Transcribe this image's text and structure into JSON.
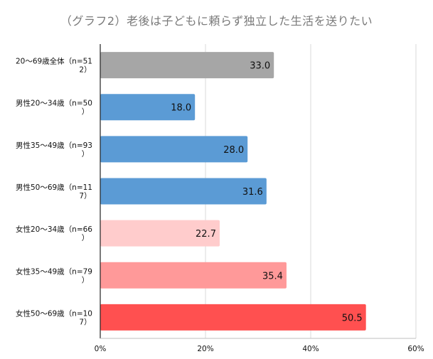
{
  "chart_data": {
    "type": "bar",
    "orientation": "horizontal",
    "title": "（グラフ2）老後は子どもに頼らず独立した生活を送りたい",
    "categories": [
      [
        "20〜69歳全体（n=51",
        "2）"
      ],
      [
        "男性20〜34歳（n=50",
        "）"
      ],
      [
        "男性35〜49歳（n=93",
        "）"
      ],
      [
        "男性50〜69歳（n=11",
        "7）"
      ],
      [
        "女性20〜34歳（n=66",
        "）"
      ],
      [
        "女性35〜49歳（n=79",
        "）"
      ],
      [
        "女性50〜69歳（n=10",
        "7）"
      ]
    ],
    "values": [
      33.0,
      18.0,
      28.0,
      31.6,
      22.7,
      35.4,
      50.5
    ],
    "value_labels": [
      "33.0",
      "18.0",
      "28.0",
      "31.6",
      "22.7",
      "35.4",
      "50.5"
    ],
    "colors": [
      "#a6a6a6",
      "#5b9bd5",
      "#5b9bd5",
      "#5b9bd5",
      "#ffcccc",
      "#ff9999",
      "#ff5050"
    ],
    "xlim": [
      0,
      60
    ],
    "xticks": [
      0,
      20,
      40,
      60
    ],
    "xtick_labels": [
      "0%",
      "20%",
      "40%",
      "60%"
    ],
    "grid": true,
    "xlabel": "",
    "ylabel": ""
  }
}
